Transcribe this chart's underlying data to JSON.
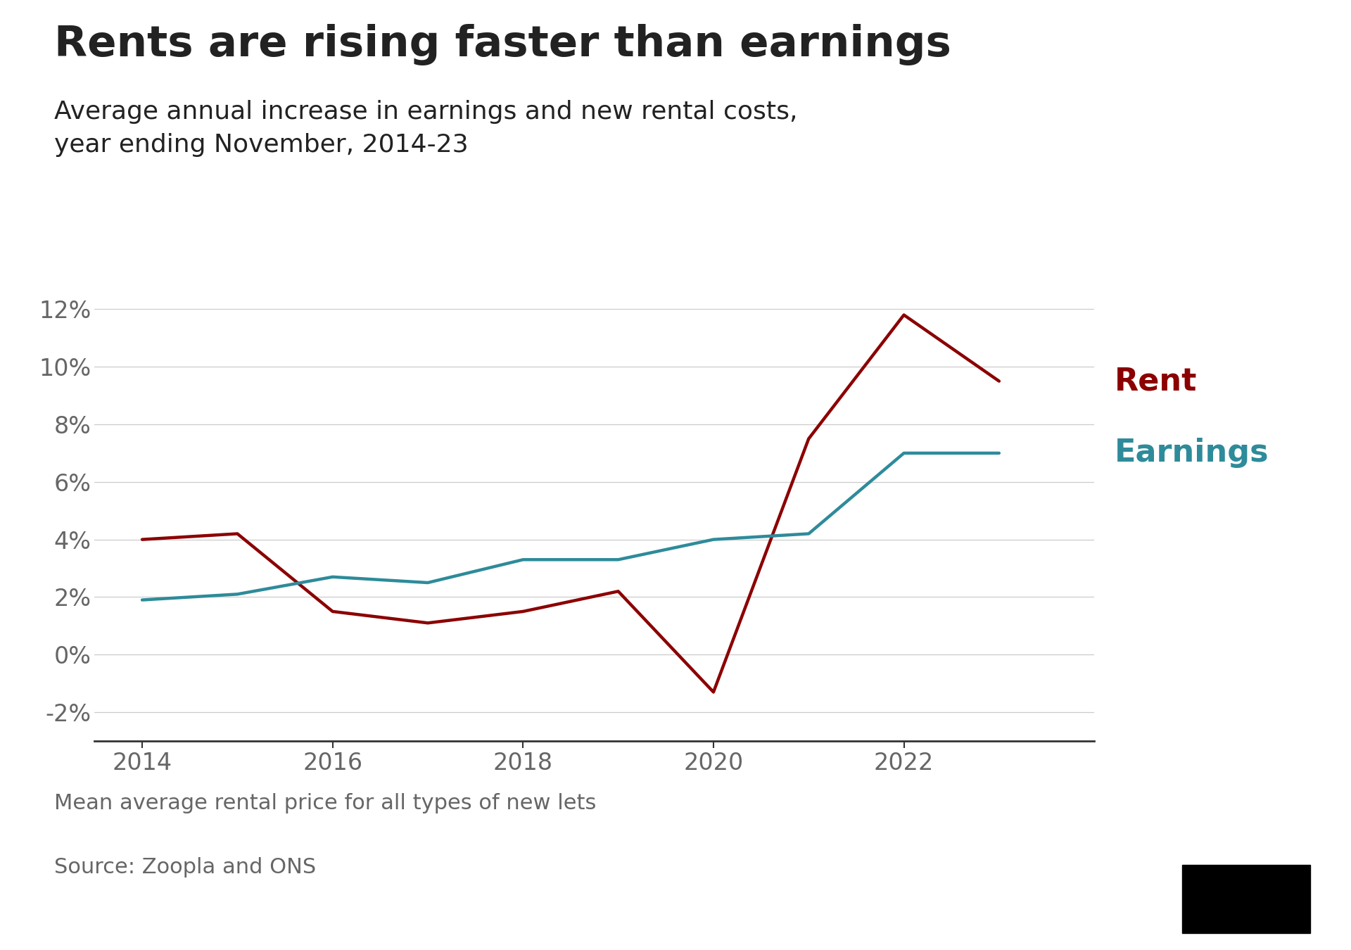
{
  "title": "Rents are rising faster than earnings",
  "subtitle": "Average annual increase in earnings and new rental costs,\nyear ending November, 2014-23",
  "footnote": "Mean average rental price for all types of new lets",
  "source": "Source: Zoopla and ONS",
  "rent_years": [
    2014,
    2015,
    2016,
    2017,
    2018,
    2019,
    2020,
    2021,
    2022,
    2023
  ],
  "rent_values": [
    0.04,
    0.042,
    0.015,
    0.011,
    0.015,
    0.022,
    -0.013,
    0.075,
    0.118,
    0.095
  ],
  "earnings_years": [
    2014,
    2015,
    2016,
    2017,
    2018,
    2019,
    2020,
    2021,
    2022,
    2023
  ],
  "earnings_values": [
    0.019,
    0.021,
    0.027,
    0.025,
    0.033,
    0.033,
    0.04,
    0.042,
    0.07,
    0.07
  ],
  "rent_color": "#8B0000",
  "earnings_color": "#2E8B9A",
  "rent_label": "Rent",
  "earnings_label": "Earnings",
  "ylim": [
    -0.03,
    0.135
  ],
  "yticks": [
    -0.02,
    0.0,
    0.02,
    0.04,
    0.06,
    0.08,
    0.1,
    0.12
  ],
  "xlim": [
    2013.5,
    2024.0
  ],
  "xticks": [
    2014,
    2016,
    2018,
    2020,
    2022
  ],
  "line_width": 3.2,
  "background_color": "#ffffff",
  "grid_color": "#cccccc",
  "title_fontsize": 44,
  "subtitle_fontsize": 26,
  "tick_fontsize": 24,
  "label_fontsize": 32,
  "footnote_fontsize": 22,
  "source_fontsize": 22,
  "text_color": "#222222",
  "tick_color": "#666666"
}
